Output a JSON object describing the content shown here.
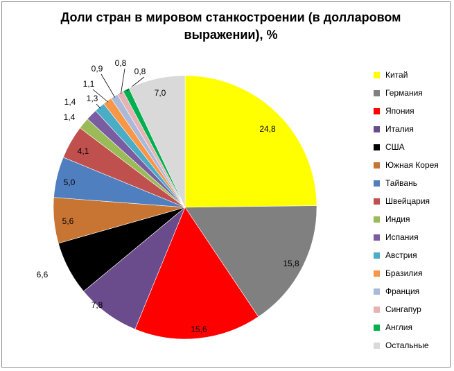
{
  "chart_data": {
    "type": "pie",
    "title_lines": [
      "Доли стран в мировом станкостроении (в долларовом",
      "выражении), %"
    ],
    "legend_position": "right",
    "slices": [
      {
        "label": "Китай",
        "value": 24.8,
        "display": "24,8",
        "color": "#ffff00"
      },
      {
        "label": "Германия",
        "value": 15.8,
        "display": "15,8",
        "color": "#808080"
      },
      {
        "label": "Япония",
        "value": 15.6,
        "display": "15,6",
        "color": "#ff0000"
      },
      {
        "label": "Италия",
        "value": 7.8,
        "display": "7,8",
        "color": "#6a4c8c"
      },
      {
        "label": "США",
        "value": 6.6,
        "display": "6,6",
        "color": "#000000"
      },
      {
        "label": "Южная Корея",
        "value": 5.6,
        "display": "5,6",
        "color": "#c87533"
      },
      {
        "label": "Тайвань",
        "value": 5.0,
        "display": "5,0",
        "color": "#4f7fbf"
      },
      {
        "label": "Швейцария",
        "value": 4.1,
        "display": "4,1",
        "color": "#c0504d"
      },
      {
        "label": "Индия",
        "value": 1.4,
        "display": "1,4",
        "color": "#9bbb59"
      },
      {
        "label": "Испания",
        "value": 1.4,
        "display": "1,4",
        "color": "#7a5ca0"
      },
      {
        "label": "Австрия",
        "value": 1.3,
        "display": "1,3",
        "color": "#4bacc6"
      },
      {
        "label": "Бразилия",
        "value": 1.1,
        "display": "1,1",
        "color": "#f79646"
      },
      {
        "label": "Франция",
        "value": 0.9,
        "display": "0,9",
        "color": "#aab9d9"
      },
      {
        "label": "Сингапур",
        "value": 0.8,
        "display": "0,8",
        "color": "#e6b3b3"
      },
      {
        "label": "Англия",
        "value": 0.8,
        "display": "0,8",
        "color": "#00b050"
      },
      {
        "label": "Остальные",
        "value": 7.0,
        "display": "7,0",
        "color": "#d9d9d9"
      }
    ]
  }
}
